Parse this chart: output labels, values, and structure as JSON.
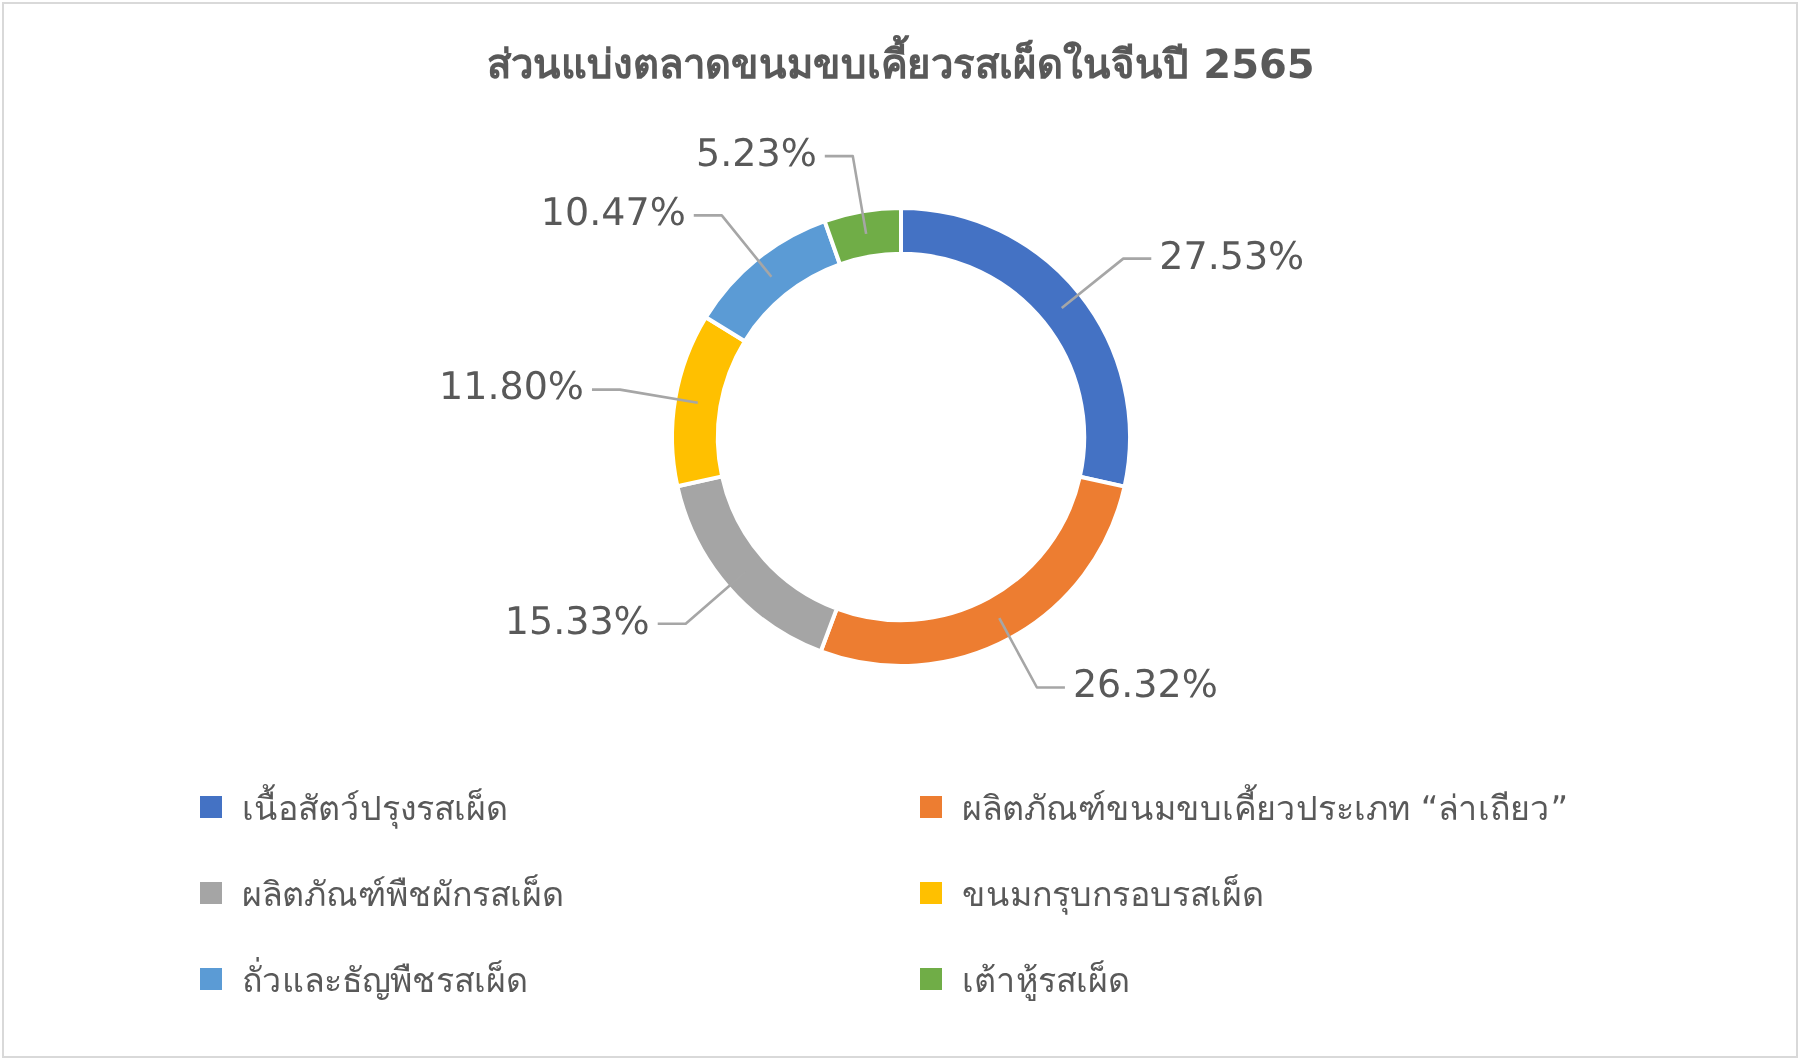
{
  "chart_data": {
    "type": "donut",
    "title": "ส่วนแบ่งตลาดขนมขบเคี้ยวรสเผ็ดในจีนปี 2565",
    "categories": [
      "เนื้อสัตว์ปรุงรสเผ็ด",
      "ผลิตภัณฑ์ขนมขบเคี้ยวประเภท “ล่าเถียว”",
      "ผลิตภัณฑ์พืชผักรสเผ็ด",
      "ขนมกรุบกรอบรสเผ็ด",
      "ถั่วและธัญพืชรสเผ็ด",
      "เต้าหู้รสเผ็ด"
    ],
    "values": [
      27.53,
      26.32,
      15.33,
      11.8,
      10.47,
      5.23
    ],
    "value_labels": [
      "27.53%",
      "26.32%",
      "15.33%",
      "11.80%",
      "10.47%",
      "5.23%"
    ],
    "colors": [
      "#4472c4",
      "#ed7d31",
      "#a5a5a5",
      "#ffc000",
      "#5b9bd5",
      "#70ad47"
    ],
    "legend": "bottom"
  }
}
